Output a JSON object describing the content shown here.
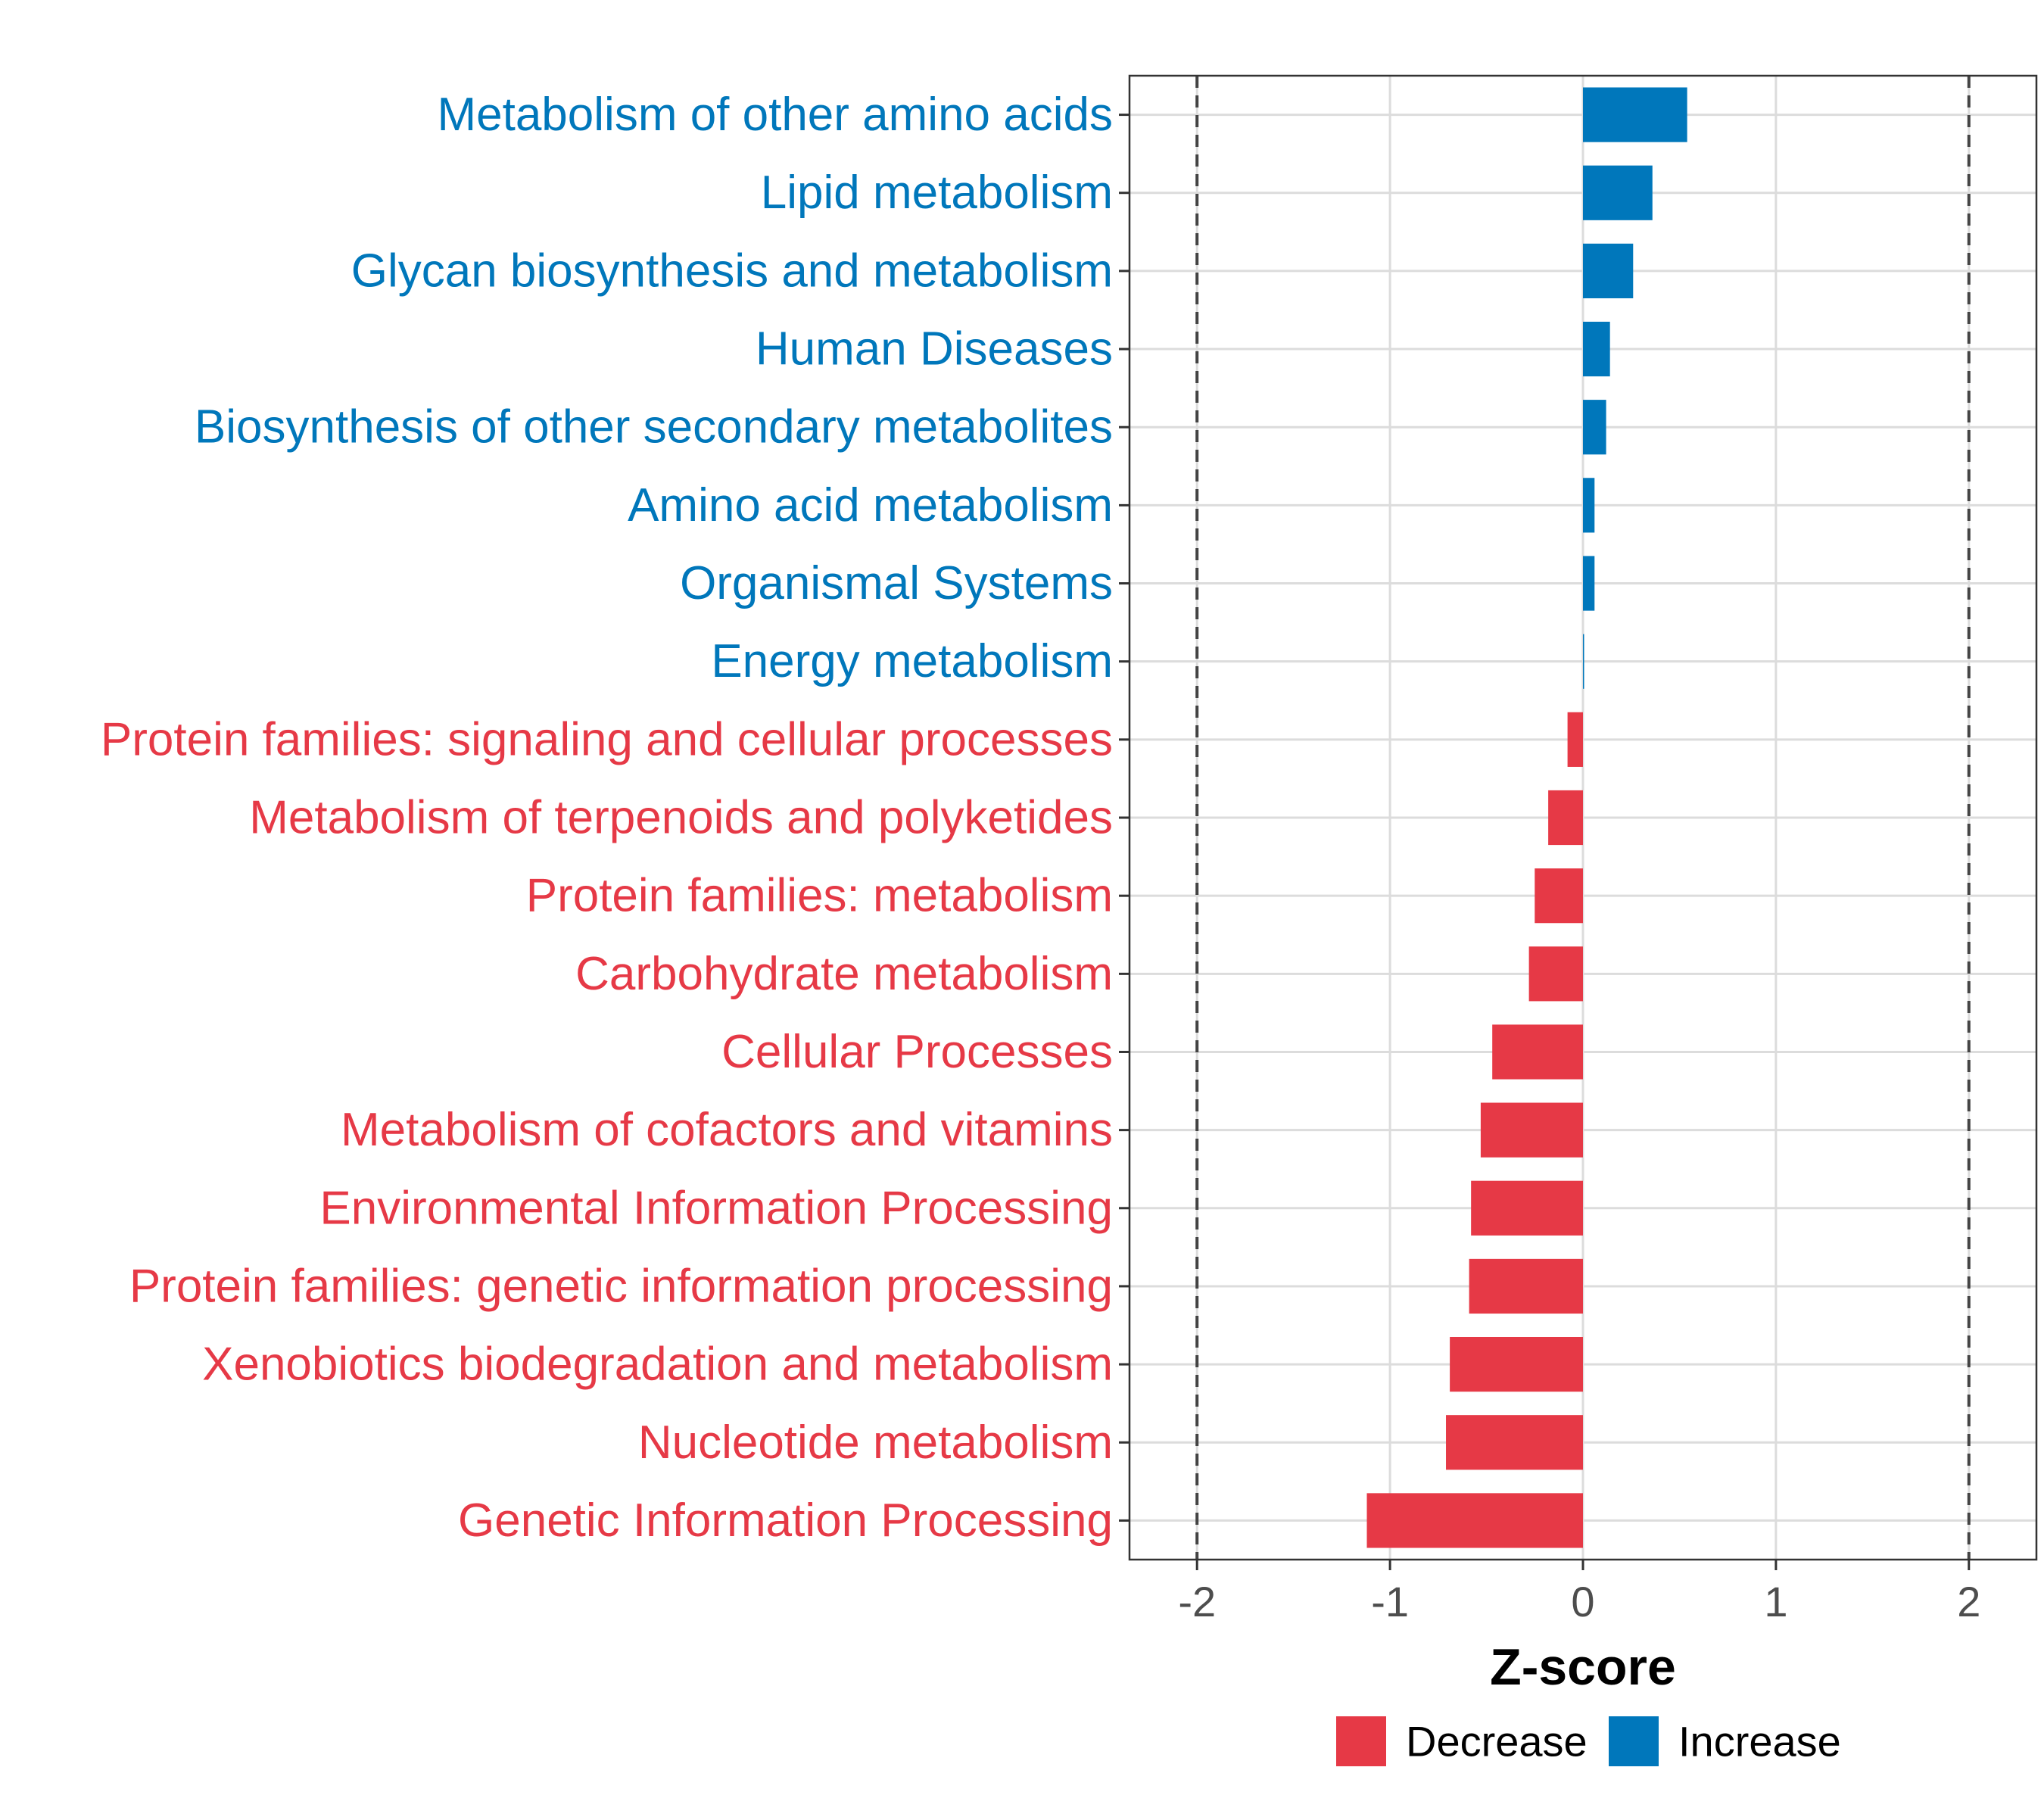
{
  "chart_data": {
    "type": "bar",
    "orientation": "horizontal",
    "xlabel": "Z-score",
    "ylabel": "",
    "xlim": [
      -2.35,
      2.35
    ],
    "x_ticks": [
      -2,
      -1,
      0,
      1,
      2
    ],
    "x_tick_labels": [
      "-2",
      "-1",
      "0",
      "1",
      "2"
    ],
    "reference_lines": [
      -2,
      2
    ],
    "grid": true,
    "legend_position": "bottom",
    "colors": {
      "Decrease": "#e63946",
      "Increase": "#0077bb"
    },
    "legend": [
      {
        "name": "Decrease",
        "color": "#e63946"
      },
      {
        "name": "Increase",
        "color": "#0077bb"
      }
    ],
    "categories": [
      "Metabolism of other amino acids",
      "Lipid metabolism",
      "Glycan biosynthesis and metabolism",
      "Human Diseases",
      "Biosynthesis of other secondary metabolites",
      "Amino acid metabolism",
      "Organismal Systems",
      "Energy metabolism",
      "Protein families: signaling and cellular processes",
      "Metabolism of terpenoids and polyketides",
      "Protein families: metabolism",
      "Carbohydrate metabolism",
      "Cellular Processes",
      "Metabolism of cofactors and vitamins",
      "Environmental Information Processing",
      "Protein families: genetic information processing",
      "Xenobiotics biodegradation and metabolism",
      "Nucleotide metabolism",
      "Genetic Information Processing"
    ],
    "values": [
      0.54,
      0.36,
      0.26,
      0.14,
      0.12,
      0.06,
      0.06,
      0.005,
      -0.08,
      -0.18,
      -0.25,
      -0.28,
      -0.47,
      -0.53,
      -0.58,
      -0.59,
      -0.69,
      -0.71,
      -1.12
    ],
    "groups": [
      "Increase",
      "Increase",
      "Increase",
      "Increase",
      "Increase",
      "Increase",
      "Increase",
      "Increase",
      "Decrease",
      "Decrease",
      "Decrease",
      "Decrease",
      "Decrease",
      "Decrease",
      "Decrease",
      "Decrease",
      "Decrease",
      "Decrease",
      "Decrease"
    ]
  }
}
